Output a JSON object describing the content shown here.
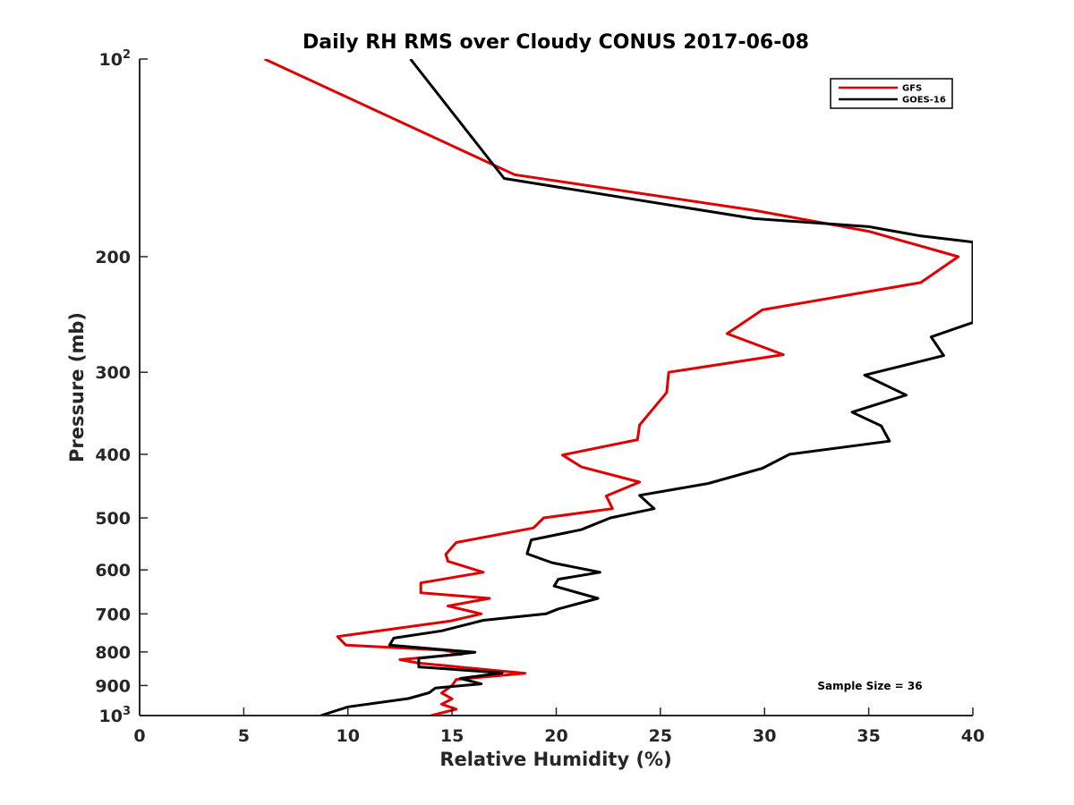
{
  "chart_data": {
    "type": "line",
    "title": "Daily RH RMS over Cloudy CONUS 2017-06-08",
    "xlabel": "Relative Humidity (%)",
    "ylabel": "Pressure (mb)",
    "xlim": [
      0,
      40
    ],
    "ylim": [
      100,
      1000
    ],
    "y_scale": "log",
    "y_reversed": true,
    "grid": false,
    "legend_position": "top-right",
    "x_ticks": [
      0,
      5,
      10,
      15,
      20,
      25,
      30,
      35,
      40
    ],
    "y_ticks": [
      {
        "value": 100,
        "base": "10",
        "exp": "2"
      },
      {
        "value": 200,
        "label": "200"
      },
      {
        "value": 300,
        "label": "300"
      },
      {
        "value": 400,
        "label": "400"
      },
      {
        "value": 500,
        "label": "500"
      },
      {
        "value": 600,
        "label": "600"
      },
      {
        "value": 700,
        "label": "700"
      },
      {
        "value": 800,
        "label": "800"
      },
      {
        "value": 900,
        "label": "900"
      },
      {
        "value": 1000,
        "base": "10",
        "exp": "3"
      }
    ],
    "annotation": "Sample Size = 36",
    "series": [
      {
        "name": "GFS",
        "color": "#e00000",
        "points": [
          [
            6.0,
            100
          ],
          [
            18.0,
            150
          ],
          [
            29.5,
            170
          ],
          [
            35.0,
            183
          ],
          [
            39.3,
            200
          ],
          [
            37.5,
            219
          ],
          [
            29.9,
            241
          ],
          [
            28.2,
            262
          ],
          [
            30.9,
            282
          ],
          [
            25.4,
            300
          ],
          [
            25.3,
            322
          ],
          [
            24.0,
            361
          ],
          [
            23.9,
            380
          ],
          [
            20.3,
            401
          ],
          [
            21.2,
            418
          ],
          [
            24.0,
            441
          ],
          [
            22.4,
            463
          ],
          [
            22.7,
            484
          ],
          [
            19.4,
            500
          ],
          [
            18.9,
            518
          ],
          [
            15.2,
            545
          ],
          [
            14.7,
            568
          ],
          [
            14.8,
            582
          ],
          [
            16.5,
            605
          ],
          [
            13.5,
            628
          ],
          [
            13.5,
            650
          ],
          [
            16.8,
            663
          ],
          [
            14.8,
            681
          ],
          [
            16.4,
            700
          ],
          [
            14.9,
            718
          ],
          [
            9.5,
            758
          ],
          [
            9.9,
            781
          ],
          [
            14.6,
            795
          ],
          [
            15.5,
            806
          ],
          [
            12.5,
            822
          ],
          [
            13.4,
            832
          ],
          [
            18.5,
            862
          ],
          [
            15.2,
            881
          ],
          [
            15.0,
            900
          ],
          [
            14.5,
            924
          ],
          [
            15.0,
            943
          ],
          [
            14.5,
            961
          ],
          [
            15.2,
            978
          ],
          [
            14.0,
            1000
          ]
        ]
      },
      {
        "name": "GOES-16",
        "color": "#000000",
        "points": [
          [
            13.0,
            100
          ],
          [
            17.5,
            152
          ],
          [
            29.5,
            175
          ],
          [
            35.0,
            180
          ],
          [
            37.5,
            186
          ],
          [
            40.0,
            190
          ],
          [
            40.0,
            252
          ],
          [
            38.0,
            265
          ],
          [
            38.6,
            283
          ],
          [
            34.8,
            303
          ],
          [
            36.8,
            325
          ],
          [
            34.2,
            345
          ],
          [
            35.6,
            362
          ],
          [
            36.0,
            382
          ],
          [
            31.2,
            400
          ],
          [
            29.9,
            420
          ],
          [
            27.3,
            443
          ],
          [
            24.0,
            462
          ],
          [
            24.7,
            484
          ],
          [
            22.6,
            500
          ],
          [
            21.2,
            521
          ],
          [
            18.8,
            540
          ],
          [
            18.6,
            567
          ],
          [
            19.8,
            585
          ],
          [
            22.1,
            605
          ],
          [
            20.1,
            620
          ],
          [
            19.9,
            635
          ],
          [
            22.0,
            663
          ],
          [
            20.1,
            688
          ],
          [
            19.5,
            700
          ],
          [
            16.5,
            716
          ],
          [
            14.5,
            743
          ],
          [
            12.2,
            762
          ],
          [
            12.0,
            781
          ],
          [
            16.1,
            801
          ],
          [
            13.4,
            818
          ],
          [
            13.4,
            843
          ],
          [
            17.4,
            861
          ],
          [
            15.4,
            878
          ],
          [
            16.4,
            895
          ],
          [
            14.2,
            908
          ],
          [
            13.9,
            923
          ],
          [
            12.9,
            942
          ],
          [
            10.0,
            970
          ],
          [
            8.7,
            1000
          ]
        ]
      }
    ]
  }
}
